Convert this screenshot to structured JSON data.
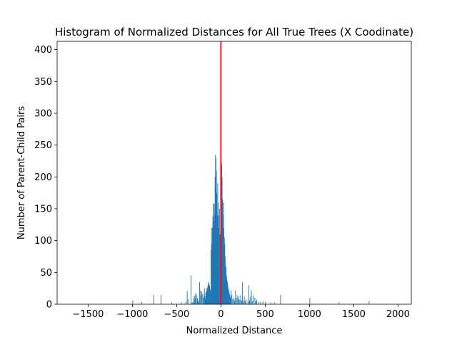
{
  "chart_data": {
    "type": "bar",
    "title": "Histogram of Normalized Distances for All True Trees (X Coodinate)",
    "xlabel": "Normalized Distance",
    "ylabel": "Number of Parent-Child Pairs",
    "xlim": [
      -1850,
      2150
    ],
    "ylim": [
      0,
      413
    ],
    "xticks": [
      -1500,
      -1000,
      -500,
      0,
      500,
      1000,
      1500,
      2000
    ],
    "yticks": [
      0,
      50,
      100,
      150,
      200,
      250,
      300,
      350,
      400
    ],
    "bin_width": 5,
    "bar_color": "#1f77b4",
    "grid": false,
    "reference_line": {
      "x": 0,
      "color": "#ff0000"
    },
    "bins": [
      [
        -1000,
        6
      ],
      [
        -900,
        4
      ],
      [
        -760,
        15
      ],
      [
        -680,
        15
      ],
      [
        -560,
        3
      ],
      [
        -450,
        3
      ],
      [
        -400,
        4
      ],
      [
        -385,
        21
      ],
      [
        -375,
        8
      ],
      [
        -340,
        45
      ],
      [
        -330,
        3
      ],
      [
        -320,
        3
      ],
      [
        -310,
        10
      ],
      [
        -300,
        13
      ],
      [
        -295,
        8
      ],
      [
        -290,
        17
      ],
      [
        -280,
        15
      ],
      [
        -270,
        10
      ],
      [
        -265,
        7
      ],
      [
        -260,
        5
      ],
      [
        -250,
        4
      ],
      [
        -245,
        35
      ],
      [
        -235,
        22
      ],
      [
        -225,
        14
      ],
      [
        -220,
        20
      ],
      [
        -210,
        16
      ],
      [
        -200,
        10
      ],
      [
        -195,
        14
      ],
      [
        -190,
        25
      ],
      [
        -185,
        12
      ],
      [
        -180,
        8
      ],
      [
        -175,
        19
      ],
      [
        -170,
        18
      ],
      [
        -165,
        25
      ],
      [
        -160,
        21
      ],
      [
        -155,
        27
      ],
      [
        -150,
        30
      ],
      [
        -145,
        33
      ],
      [
        -140,
        35
      ],
      [
        -135,
        31
      ],
      [
        -130,
        28
      ],
      [
        -125,
        23
      ],
      [
        -120,
        20
      ],
      [
        -115,
        85
      ],
      [
        -110,
        120
      ],
      [
        -105,
        95
      ],
      [
        -100,
        120
      ],
      [
        -95,
        138
      ],
      [
        -90,
        158
      ],
      [
        -85,
        130
      ],
      [
        -80,
        158
      ],
      [
        -75,
        140
      ],
      [
        -70,
        200
      ],
      [
        -65,
        235
      ],
      [
        -60,
        230
      ],
      [
        -55,
        210
      ],
      [
        -50,
        175
      ],
      [
        -45,
        140
      ],
      [
        -40,
        190
      ],
      [
        -35,
        160
      ],
      [
        -30,
        140
      ],
      [
        -25,
        120
      ],
      [
        -20,
        150
      ],
      [
        -15,
        110
      ],
      [
        -10,
        100
      ],
      [
        -5,
        160
      ],
      [
        0,
        225
      ],
      [
        5,
        220
      ],
      [
        10,
        200
      ],
      [
        15,
        165
      ],
      [
        20,
        140
      ],
      [
        25,
        160
      ],
      [
        30,
        120
      ],
      [
        35,
        105
      ],
      [
        40,
        95
      ],
      [
        45,
        75
      ],
      [
        50,
        60
      ],
      [
        55,
        58
      ],
      [
        60,
        45
      ],
      [
        65,
        38
      ],
      [
        70,
        35
      ],
      [
        75,
        30
      ],
      [
        80,
        25
      ],
      [
        85,
        22
      ],
      [
        90,
        18
      ],
      [
        95,
        15
      ],
      [
        100,
        12
      ],
      [
        105,
        10
      ],
      [
        110,
        22
      ],
      [
        120,
        15
      ],
      [
        130,
        8
      ],
      [
        140,
        10
      ],
      [
        150,
        6
      ],
      [
        160,
        22
      ],
      [
        170,
        10
      ],
      [
        180,
        14
      ],
      [
        190,
        8
      ],
      [
        200,
        13
      ],
      [
        210,
        7
      ],
      [
        220,
        14
      ],
      [
        230,
        6
      ],
      [
        240,
        35
      ],
      [
        250,
        5
      ],
      [
        260,
        13
      ],
      [
        270,
        5
      ],
      [
        280,
        8
      ],
      [
        300,
        4
      ],
      [
        310,
        30
      ],
      [
        320,
        6
      ],
      [
        330,
        12
      ],
      [
        340,
        22
      ],
      [
        350,
        5
      ],
      [
        360,
        14
      ],
      [
        380,
        10
      ],
      [
        390,
        5
      ],
      [
        400,
        7
      ],
      [
        420,
        4
      ],
      [
        440,
        3
      ],
      [
        470,
        5
      ],
      [
        500,
        4
      ],
      [
        560,
        3
      ],
      [
        600,
        3
      ],
      [
        670,
        15
      ],
      [
        1000,
        10
      ],
      [
        1330,
        3
      ],
      [
        1670,
        5
      ]
    ]
  }
}
